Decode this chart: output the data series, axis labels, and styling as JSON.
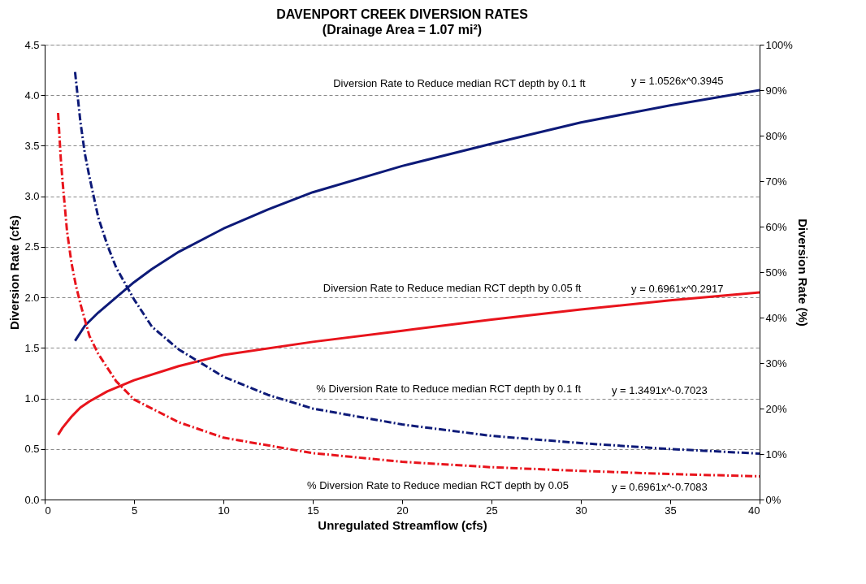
{
  "chart_data": {
    "type": "line",
    "title": "DAVENPORT CREEK DIVERSION RATES",
    "subtitle": "(Drainage Area = 1.07 mi²)",
    "xlabel": "Unregulated Streamflow (cfs)",
    "ylabel": "Diversion Rate (cfs)",
    "y2label": "Diversion Rate (%)",
    "xlim": [
      0,
      40
    ],
    "xticks": [
      0,
      5,
      10,
      15,
      20,
      25,
      30,
      35,
      40
    ],
    "ylim": [
      0,
      4.5
    ],
    "yticks": [
      {
        "value": 0,
        "label": "0.0"
      },
      0.5,
      {
        "value": 1,
        "label": "1.0"
      },
      1.5,
      {
        "value": 2,
        "label": "2.0"
      },
      2.5,
      {
        "value": 3,
        "label": "3.0"
      },
      3.5,
      {
        "value": 4,
        "label": "4.0"
      },
      4.5
    ],
    "y2lim": [
      0,
      100
    ],
    "y2ticks": [
      {
        "value": 0,
        "label": "0%"
      },
      {
        "value": 10,
        "label": "10%"
      },
      {
        "value": 20,
        "label": "20%"
      },
      {
        "value": 30,
        "label": "30%"
      },
      {
        "value": 40,
        "label": "40%"
      },
      {
        "value": 50,
        "label": "50%"
      },
      {
        "value": 60,
        "label": "60%"
      },
      {
        "value": 70,
        "label": "70%"
      },
      {
        "value": 80,
        "label": "80%"
      },
      {
        "value": 90,
        "label": "90%"
      },
      {
        "value": 100,
        "label": "100%"
      }
    ],
    "grid": "y",
    "legend": false,
    "marker": "none",
    "series": [
      {
        "color": "#0d1a78",
        "line_style": "solid",
        "x": [
          1.7,
          2.25,
          3,
          4,
          5,
          6,
          7.5,
          10,
          12.5,
          15,
          20,
          25,
          30,
          35,
          40
        ],
        "values": [
          1.57,
          1.72,
          1.85,
          2.0,
          2.15,
          2.28,
          2.45,
          2.68,
          2.87,
          3.04,
          3.3,
          3.52,
          3.73,
          3.9,
          4.05
        ]
      },
      {
        "color": "#e8141c",
        "line_style": "solid",
        "x": [
          0.75,
          1,
          1.5,
          2,
          2.5,
          3.5,
          5,
          7.5,
          10,
          15,
          20,
          25,
          30,
          35,
          40
        ],
        "values": [
          0.64,
          0.71,
          0.82,
          0.91,
          0.97,
          1.07,
          1.18,
          1.32,
          1.43,
          1.56,
          1.67,
          1.78,
          1.88,
          1.97,
          2.05
        ]
      },
      {
        "color": "#0d1a78",
        "line_style": "dashed",
        "axis": "y2",
        "x": [
          1.7,
          2,
          2.25,
          2.5,
          3,
          3.5,
          4,
          5,
          6,
          7.5,
          10,
          12.5,
          15,
          20,
          25,
          30,
          35,
          40
        ],
        "values": [
          94,
          83,
          76,
          71,
          62,
          56,
          51,
          44,
          38,
          33,
          27,
          23,
          20,
          16.5,
          14,
          12.4,
          11.1,
          10.1
        ]
      },
      {
        "color": "#e8141c",
        "line_style": "dashed",
        "axis": "y2",
        "x": [
          0.75,
          0.9,
          1,
          1.25,
          1.5,
          1.75,
          2,
          2.5,
          3,
          4,
          5,
          7.5,
          10,
          15,
          20,
          25,
          30,
          35,
          40
        ],
        "values": [
          85,
          75,
          70,
          59,
          52,
          47,
          43,
          36,
          32,
          26,
          22,
          17,
          13.6,
          10.2,
          8.3,
          7.1,
          6.3,
          5.6,
          5.1
        ]
      }
    ],
    "annotations": [
      "Diversion Rate to Reduce median RCT depth by 0.1 ft",
      "y = 1.0526x^0.3945",
      "Diversion Rate to Reduce median RCT depth by 0.05 ft",
      "y = 0.6961x^0.2917",
      "% Diversion Rate to Reduce median RCT depth by 0.1 ft",
      "y = 1.3491x^-0.7023",
      "% Diversion Rate to Reduce median RCT depth by 0.05",
      "y = 0.6961x^-0.7083"
    ]
  }
}
